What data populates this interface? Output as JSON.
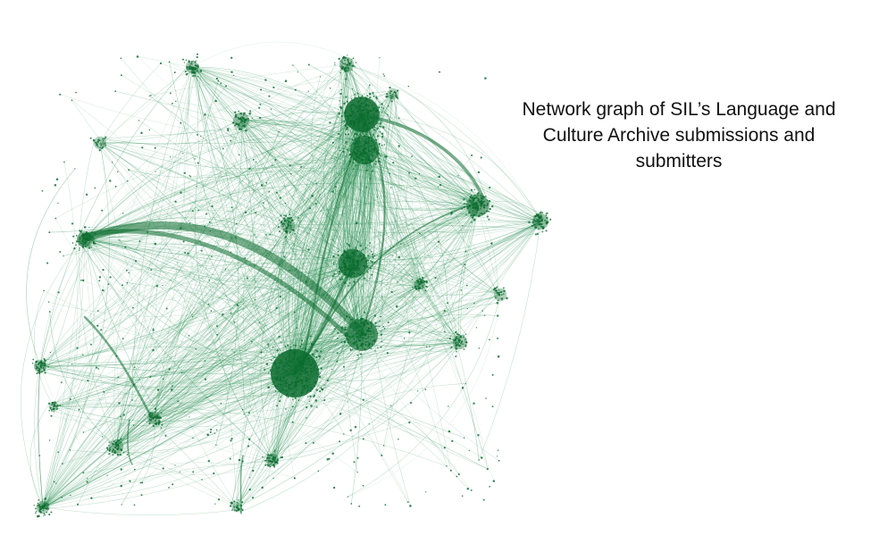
{
  "title": "Network graph of SIL’s Language and Culture Archive submissions and submitters",
  "colors": {
    "node": "#0b6b2e",
    "edge": "#1f8a4a",
    "background": "#ffffff",
    "text": "#111111"
  }
}
